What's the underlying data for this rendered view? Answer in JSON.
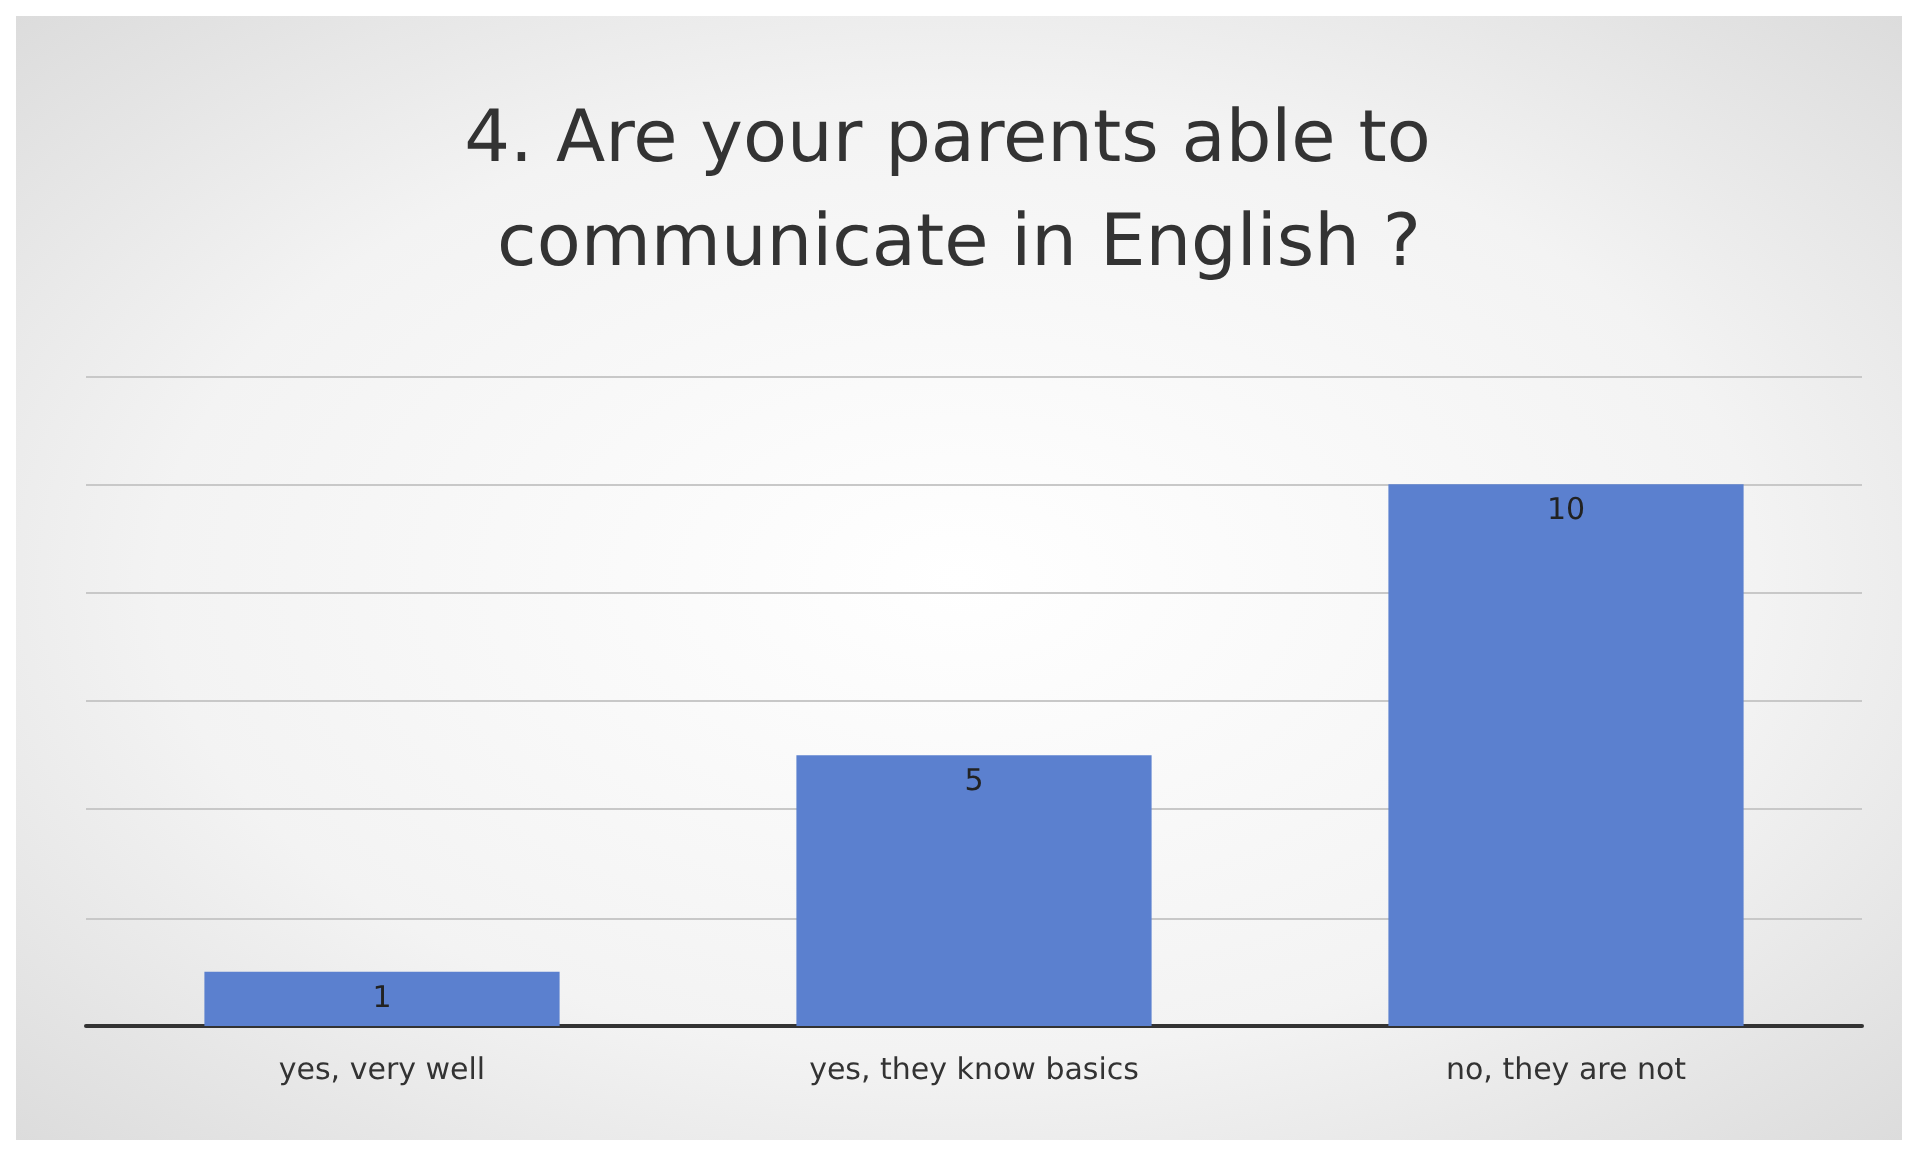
{
  "chart_data": {
    "type": "bar",
    "title": "4. Are your parents able to communicate in English ?",
    "categories": [
      "yes, very well",
      "yes, they know basics",
      "no, they are not"
    ],
    "values": [
      1,
      5,
      10
    ],
    "color": "#5b80cf",
    "ylim": [
      0,
      12
    ],
    "yticks": [
      {
        "value": 0,
        "label": null
      },
      {
        "value": 2,
        "label": null
      },
      {
        "value": 4,
        "label": null
      },
      {
        "value": 6,
        "label": null
      },
      {
        "value": 8,
        "label": null
      },
      {
        "value": 10,
        "label": null
      },
      {
        "value": 12,
        "label": null
      }
    ],
    "grid": "y",
    "tick_labels": "x",
    "data_labels": true
  }
}
